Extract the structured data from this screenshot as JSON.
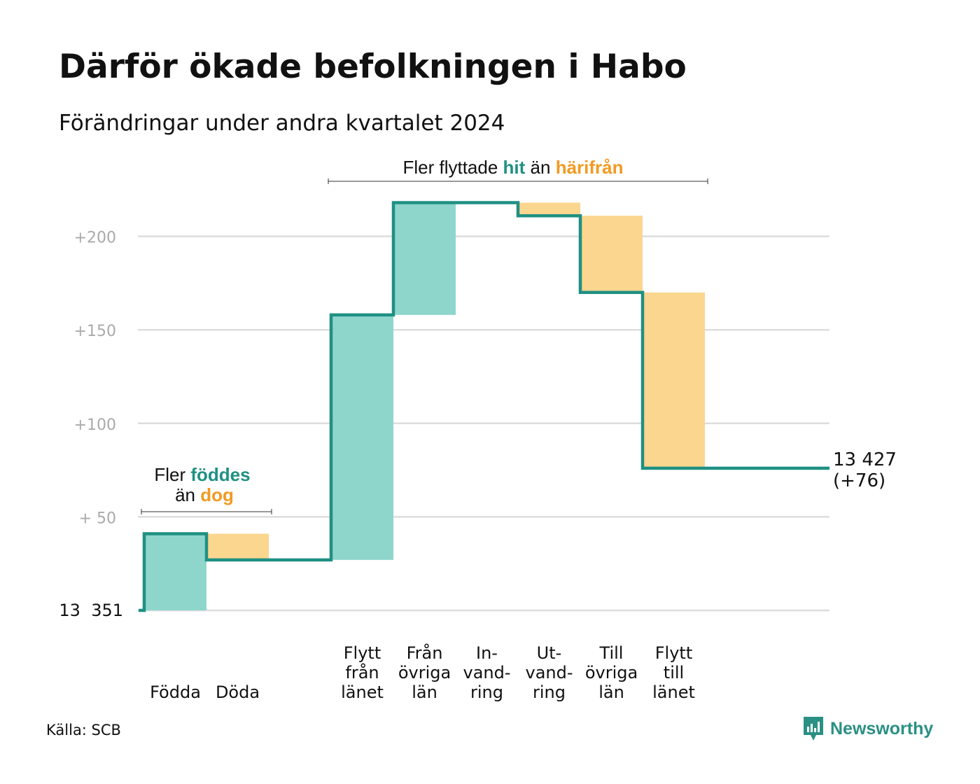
{
  "title": "Därför ökade befolkningen i Habo",
  "subtitle": "Förändringar under andra kvartalet 2024",
  "source": "Källa: SCB",
  "brand": "Newsworthy",
  "colors": {
    "positive_fill": "#8ed6cc",
    "negative_fill": "#fbd68f",
    "line": "#1f9083",
    "grid": "#dddddd",
    "tick_text": "#aaaaaa",
    "highlight_green": "#1f9083",
    "highlight_orange": "#f29a22"
  },
  "annotations": {
    "births": {
      "line1_prefix": "Fler ",
      "line1_highlight": "föddes",
      "line2_prefix": "än ",
      "line2_highlight": "dog"
    },
    "migration": {
      "prefix": "Fler flyttade ",
      "highlight1": "hit",
      "middle": " än ",
      "highlight2": "härifrån"
    }
  },
  "chart_data": {
    "type": "waterfall",
    "title": "Därför ökade befolkningen i Habo",
    "subtitle": "Förändringar under andra kvartalet 2024",
    "start_value": 13351,
    "start_label": "13  351",
    "end_value": 13427,
    "end_label": "13 427",
    "end_change_label": "(+76)",
    "y_axis": {
      "min": 0,
      "max": 200,
      "ticks": [
        0,
        50,
        100,
        150,
        200
      ],
      "tick_labels": [
        "",
        "+  50",
        "+100",
        "+150",
        "+200"
      ],
      "unit": "change from start"
    },
    "grid": true,
    "steps": [
      {
        "category": "Födda",
        "label_lines": [
          "Födda"
        ],
        "from": 0,
        "to": 41,
        "sign": "positive"
      },
      {
        "category": "Döda",
        "label_lines": [
          "Döda"
        ],
        "from": 41,
        "to": 27,
        "sign": "negative"
      },
      {
        "category": "",
        "label_lines": [],
        "from": 27,
        "to": 27,
        "sign": "none"
      },
      {
        "category": "Flytt från länet",
        "label_lines": [
          "Flytt",
          "från",
          "länet"
        ],
        "from": 27,
        "to": 158,
        "sign": "positive"
      },
      {
        "category": "Från övriga län",
        "label_lines": [
          "Från",
          "övriga",
          "län"
        ],
        "from": 158,
        "to": 218,
        "sign": "positive"
      },
      {
        "category": "Invandring",
        "label_lines": [
          "In-",
          "vand-",
          "ring"
        ],
        "from": 218,
        "to": 218,
        "sign": "none"
      },
      {
        "category": "Utvandring",
        "label_lines": [
          "Ut-",
          "vand-",
          "ring"
        ],
        "from": 218,
        "to": 211,
        "sign": "negative"
      },
      {
        "category": "Till övriga län",
        "label_lines": [
          "Till",
          "övriga",
          "län"
        ],
        "from": 211,
        "to": 170,
        "sign": "negative"
      },
      {
        "category": "Flytt till länet",
        "label_lines": [
          "Flytt",
          "till",
          "länet"
        ],
        "from": 170,
        "to": 76,
        "sign": "negative"
      }
    ]
  }
}
